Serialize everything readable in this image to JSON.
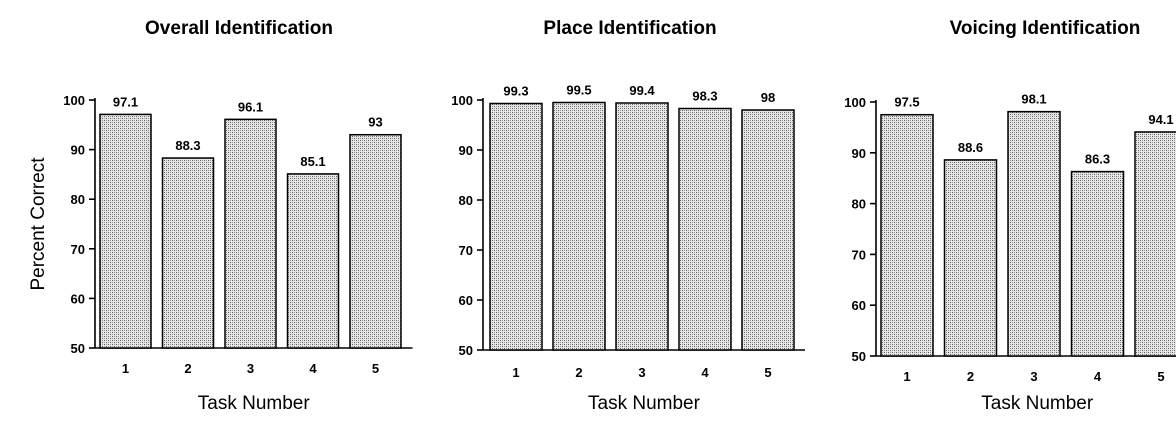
{
  "figure": {
    "ylabel": "Percent Correct",
    "yticks": [
      "100",
      "90",
      "80",
      "70",
      "60",
      "50"
    ]
  },
  "chart_data": [
    {
      "type": "bar",
      "title": "Overall Identification",
      "xlabel": "Task Number",
      "ylabel": "Percent Correct",
      "categories": [
        "1",
        "2",
        "3",
        "4",
        "5"
      ],
      "values": [
        97.1,
        88.3,
        96.1,
        85.1,
        93
      ],
      "value_labels": [
        "97.1",
        "88.3",
        "96.1",
        "85.1",
        "93"
      ],
      "ylim": [
        50,
        100
      ],
      "legend": "none",
      "grid": false
    },
    {
      "type": "bar",
      "title": "Place Identification",
      "xlabel": "Task Number",
      "ylabel": "",
      "categories": [
        "1",
        "2",
        "3",
        "4",
        "5"
      ],
      "values": [
        99.3,
        99.5,
        99.4,
        98.3,
        98
      ],
      "value_labels": [
        "99.3",
        "99.5",
        "99.4",
        "98.3",
        "98"
      ],
      "ylim": [
        50,
        100
      ],
      "legend": "none",
      "grid": false
    },
    {
      "type": "bar",
      "title": "Voicing Identification",
      "xlabel": "Task Number",
      "ylabel": "",
      "categories": [
        "1",
        "2",
        "3",
        "4",
        "5"
      ],
      "values": [
        97.5,
        88.6,
        98.1,
        86.3,
        94.1
      ],
      "value_labels": [
        "97.5",
        "88.6",
        "98.1",
        "86.3",
        "94.1"
      ],
      "ylim": [
        50,
        100
      ],
      "legend": "none",
      "grid": false
    }
  ]
}
